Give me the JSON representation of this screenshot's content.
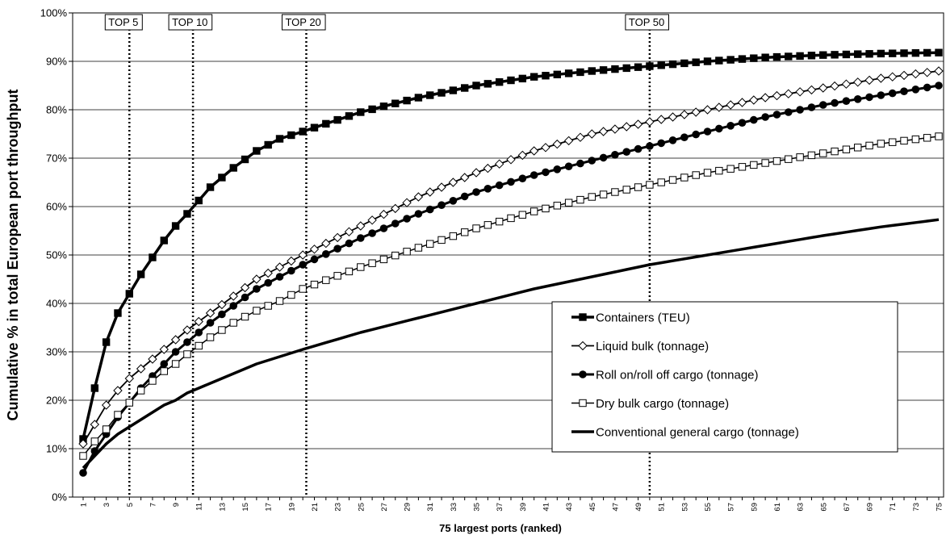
{
  "chart_data": {
    "type": "line",
    "xlabel": "75 largest ports (ranked)",
    "ylabel": "Cumulative % in total European port throughput",
    "ylim": [
      0,
      100
    ],
    "y_ticks": [
      "0%",
      "10%",
      "20%",
      "30%",
      "40%",
      "50%",
      "60%",
      "70%",
      "80%",
      "90%",
      "100%"
    ],
    "xlim": [
      1,
      75
    ],
    "x_tick_step": 2,
    "grid": "horizontal",
    "legend_position": "bottom-right",
    "vertical_markers": [
      {
        "label": "TOP 5",
        "x": 5
      },
      {
        "label": "TOP 10",
        "x": 10.5
      },
      {
        "label": "TOP 20",
        "x": 20.3
      },
      {
        "label": "TOP 50",
        "x": 50
      }
    ],
    "series": [
      {
        "name": "Containers (TEU)",
        "marker": "filled-square",
        "color": "#000000",
        "x": [
          1,
          2,
          3,
          4,
          5,
          6,
          7,
          8,
          9,
          10,
          12,
          14,
          16,
          18,
          20,
          25,
          30,
          35,
          40,
          45,
          50,
          55,
          60,
          65,
          70,
          75
        ],
        "values": [
          12,
          22.5,
          32,
          38,
          42,
          46,
          49.5,
          53,
          56,
          58.5,
          64,
          68,
          71.5,
          74,
          75.5,
          79.5,
          82.5,
          85,
          86.8,
          88,
          89,
          90,
          90.8,
          91.3,
          91.6,
          91.8
        ]
      },
      {
        "name": "Liquid bulk (tonnage)",
        "marker": "open-diamond",
        "color": "#000000",
        "x": [
          1,
          2,
          3,
          4,
          5,
          6,
          7,
          8,
          9,
          10,
          12,
          14,
          16,
          18,
          20,
          25,
          30,
          35,
          40,
          45,
          50,
          55,
          60,
          65,
          70,
          75
        ],
        "values": [
          11,
          15,
          19,
          22,
          24.5,
          26.5,
          28.5,
          30.5,
          32.5,
          34.5,
          38,
          41.5,
          45,
          47.5,
          50,
          56,
          62,
          67,
          71.5,
          75,
          77.5,
          80,
          82.5,
          84.5,
          86.5,
          88
        ]
      },
      {
        "name": "Roll on/roll off cargo (tonnage)",
        "marker": "filled-circle",
        "color": "#000000",
        "x": [
          1,
          2,
          3,
          4,
          5,
          6,
          7,
          8,
          9,
          10,
          12,
          14,
          16,
          18,
          20,
          25,
          30,
          35,
          40,
          45,
          50,
          55,
          60,
          65,
          70,
          75
        ],
        "values": [
          5,
          9.5,
          13,
          16.5,
          19.5,
          22.5,
          25,
          27.5,
          30,
          32,
          36,
          39.5,
          43,
          45.5,
          48,
          53.5,
          58.5,
          63,
          66.5,
          69.5,
          72.5,
          75.5,
          78.5,
          81,
          83,
          85
        ]
      },
      {
        "name": "Dry bulk cargo (tonnage)",
        "marker": "open-square",
        "color": "#000000",
        "x": [
          1,
          2,
          3,
          4,
          5,
          6,
          7,
          8,
          9,
          10,
          12,
          14,
          16,
          18,
          20,
          25,
          30,
          35,
          40,
          45,
          50,
          55,
          60,
          65,
          70,
          75
        ],
        "values": [
          8.5,
          11.5,
          14,
          17,
          19.5,
          22,
          24,
          26,
          27.5,
          29.5,
          33,
          36,
          38.5,
          40.5,
          43,
          47.5,
          51.5,
          55.5,
          59,
          62,
          64.5,
          67,
          69,
          71,
          73,
          74.5
        ]
      },
      {
        "name": "Conventional general cargo (tonnage)",
        "marker": "none",
        "color": "#000000",
        "x": [
          1,
          2,
          3,
          4,
          5,
          6,
          7,
          8,
          9,
          10,
          12,
          14,
          16,
          18,
          20,
          25,
          30,
          35,
          40,
          45,
          50,
          55,
          60,
          65,
          70,
          75
        ],
        "values": [
          6,
          8.5,
          11,
          13,
          14.5,
          16,
          17.5,
          19,
          20,
          21.5,
          23.5,
          25.5,
          27.5,
          29,
          30.5,
          34,
          37,
          40,
          43,
          45.5,
          48,
          50,
          52,
          54,
          55.8,
          57.3
        ]
      }
    ]
  }
}
